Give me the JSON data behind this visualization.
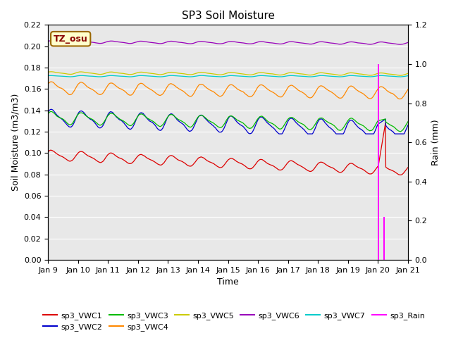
{
  "title": "SP3 Soil Moisture",
  "xlabel": "Time",
  "ylabel_left": "Soil Moisture (m3/m3)",
  "ylabel_right": "Rain (mm)",
  "ylim_left": [
    0.0,
    0.22
  ],
  "ylim_right": [
    0.0,
    1.2
  ],
  "yticks_left": [
    0.0,
    0.02,
    0.04,
    0.06,
    0.08,
    0.1,
    0.12,
    0.14,
    0.16,
    0.18,
    0.2,
    0.22
  ],
  "yticks_right": [
    0.0,
    0.2,
    0.4,
    0.6,
    0.8,
    1.0,
    1.2
  ],
  "xtick_labels": [
    "Jan 9",
    "Jan 10",
    "Jan 11",
    "Jan 12",
    "Jan 13",
    "Jan 14",
    "Jan 15",
    "Jan 16",
    "Jan 17",
    "Jan 18",
    "Jan 19",
    "Jan 20",
    "Jan 21"
  ],
  "bg_color": "#e8e8e8",
  "annotation_label": "TZ_osu",
  "annotation_facecolor": "#ffffcc",
  "annotation_edgecolor": "#996600",
  "annotation_textcolor": "#880000",
  "series_colors": {
    "sp3_VWC1": "#dd0000",
    "sp3_VWC2": "#0000cc",
    "sp3_VWC3": "#00bb00",
    "sp3_VWC4": "#ff8800",
    "sp3_VWC5": "#cccc00",
    "sp3_VWC6": "#9900bb",
    "sp3_VWC7": "#00cccc",
    "sp3_Rain": "#ff00ff"
  },
  "num_points": 1200,
  "days": 12,
  "rain_day": 11.0,
  "rain_val1": 1.0,
  "rain_day2": 11.2,
  "rain_val2": 0.22
}
